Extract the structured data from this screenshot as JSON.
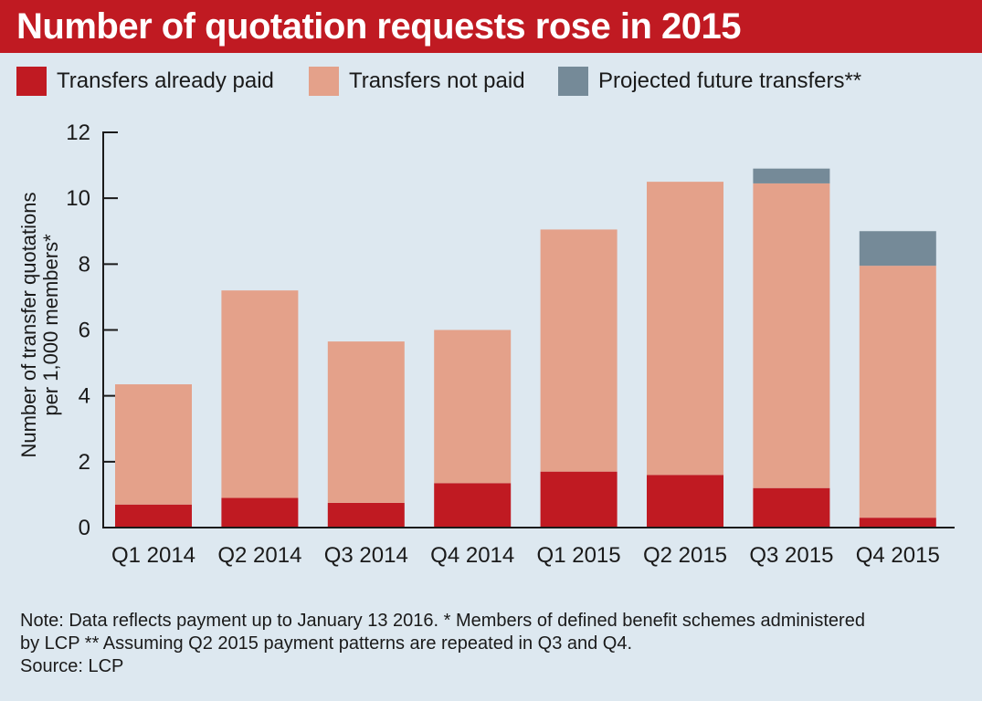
{
  "title": "Number of quotation requests rose in 2015",
  "legend": [
    {
      "label": "Transfers already paid",
      "color": "#c01a22"
    },
    {
      "label": "Transfers not paid",
      "color": "#e4a18a"
    },
    {
      "label": "Projected future transfers**",
      "color": "#758a98"
    }
  ],
  "notes": {
    "line1": "Note: Data reflects payment up to January 13 2016. * Members of defined benefit schemes administered",
    "line2": "by LCP ** Assuming Q2 2015 payment patterns are repeated in Q3 and Q4.",
    "line3": "Source: LCP"
  },
  "chart_data": {
    "type": "bar",
    "stacked": true,
    "title": "Number of quotation requests rose in 2015",
    "ylabel": "Number of transfer quotations per 1,000 members*",
    "ylabel_lines": [
      "Number of transfer quotations",
      "per 1,000 members*"
    ],
    "xlabel": "",
    "categories": [
      "Q1 2014",
      "Q2 2014",
      "Q3 2014",
      "Q4 2014",
      "Q1 2015",
      "Q2 2015",
      "Q3 2015",
      "Q4 2015"
    ],
    "series": [
      {
        "name": "Transfers already paid",
        "color": "#c01a22",
        "values": [
          0.7,
          0.9,
          0.75,
          1.35,
          1.7,
          1.6,
          1.2,
          0.3
        ]
      },
      {
        "name": "Transfers not paid",
        "color": "#e4a18a",
        "values": [
          3.65,
          6.3,
          4.9,
          4.65,
          7.35,
          8.9,
          9.25,
          7.65
        ]
      },
      {
        "name": "Projected future transfers**",
        "color": "#758a98",
        "values": [
          0,
          0,
          0,
          0,
          0,
          0,
          0.45,
          1.05
        ]
      }
    ],
    "yticks": [
      0,
      2,
      4,
      6,
      8,
      10,
      12
    ],
    "ylim": [
      0,
      12
    ],
    "grid": false,
    "legend_position": "top"
  }
}
